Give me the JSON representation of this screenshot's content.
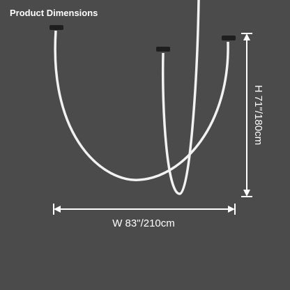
{
  "title": "Product Dimensions",
  "height_label": "H 71\"/180cm",
  "width_label": "W 83\"/210cm"
}
